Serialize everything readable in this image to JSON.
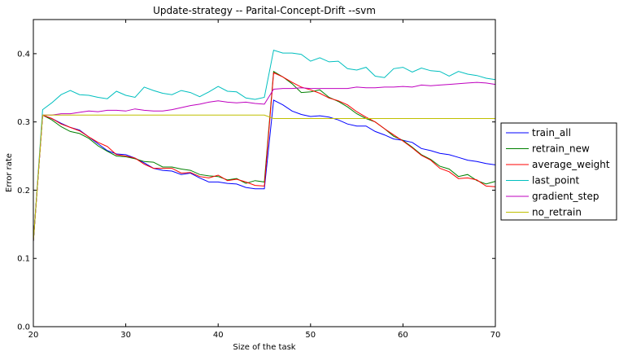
{
  "chart_data": {
    "type": "line",
    "title": "Update-strategy -- Parital-Concept-Drift --svm",
    "xlabel": "Size of the task",
    "ylabel": "Error rate",
    "xlim": [
      20,
      70
    ],
    "ylim": [
      0.0,
      0.45
    ],
    "xticks": [
      20,
      30,
      40,
      50,
      60,
      70
    ],
    "yticks": [
      0.0,
      0.1,
      0.2,
      0.3,
      0.4
    ],
    "ytick_labels": [
      "0.0",
      "0.1",
      "0.2",
      "0.3",
      "0.4"
    ],
    "grid": false,
    "legend_position": "right, outside plot",
    "x": [
      20,
      21,
      22,
      23,
      24,
      25,
      26,
      27,
      28,
      29,
      30,
      31,
      32,
      33,
      34,
      35,
      36,
      37,
      38,
      39,
      40,
      41,
      42,
      43,
      44,
      45,
      46,
      47,
      48,
      49,
      50,
      51,
      52,
      53,
      54,
      55,
      56,
      57,
      58,
      59,
      60,
      61,
      62,
      63,
      64,
      65,
      66,
      67,
      68,
      69,
      70
    ],
    "series": [
      {
        "name": "train_all",
        "color": "#0000ff",
        "values": [
          0.125,
          0.31,
          0.305,
          0.298,
          0.292,
          0.288,
          0.278,
          0.268,
          0.258,
          0.253,
          0.252,
          0.247,
          0.24,
          0.232,
          0.229,
          0.228,
          0.223,
          0.225,
          0.218,
          0.212,
          0.212,
          0.21,
          0.209,
          0.204,
          0.202,
          0.202,
          0.332,
          0.325,
          0.316,
          0.311,
          0.308,
          0.309,
          0.307,
          0.303,
          0.297,
          0.294,
          0.294,
          0.286,
          0.281,
          0.275,
          0.273,
          0.27,
          0.261,
          0.258,
          0.254,
          0.252,
          0.248,
          0.244,
          0.242,
          0.239,
          0.237
        ]
      },
      {
        "name": "retrain_new",
        "color": "#008000",
        "values": [
          0.125,
          0.31,
          0.303,
          0.293,
          0.286,
          0.283,
          0.276,
          0.265,
          0.257,
          0.25,
          0.249,
          0.246,
          0.242,
          0.241,
          0.234,
          0.234,
          0.231,
          0.229,
          0.223,
          0.221,
          0.22,
          0.215,
          0.217,
          0.21,
          0.214,
          0.212,
          0.374,
          0.366,
          0.356,
          0.343,
          0.344,
          0.347,
          0.336,
          0.33,
          0.322,
          0.312,
          0.305,
          0.3,
          0.29,
          0.279,
          0.273,
          0.263,
          0.252,
          0.245,
          0.235,
          0.231,
          0.22,
          0.223,
          0.214,
          0.209,
          0.213
        ]
      },
      {
        "name": "average_weight",
        "color": "#ff0000",
        "values": [
          0.125,
          0.31,
          0.305,
          0.297,
          0.292,
          0.287,
          0.278,
          0.27,
          0.264,
          0.252,
          0.25,
          0.247,
          0.238,
          0.232,
          0.232,
          0.232,
          0.225,
          0.226,
          0.22,
          0.218,
          0.222,
          0.214,
          0.216,
          0.212,
          0.207,
          0.206,
          0.372,
          0.366,
          0.358,
          0.351,
          0.347,
          0.342,
          0.335,
          0.331,
          0.325,
          0.315,
          0.307,
          0.3,
          0.29,
          0.281,
          0.272,
          0.262,
          0.251,
          0.244,
          0.232,
          0.227,
          0.217,
          0.218,
          0.215,
          0.206,
          0.205
        ]
      },
      {
        "name": "last_point",
        "color": "#00bfbf",
        "values": [
          0.125,
          0.318,
          0.328,
          0.34,
          0.346,
          0.34,
          0.339,
          0.336,
          0.334,
          0.345,
          0.339,
          0.336,
          0.351,
          0.346,
          0.342,
          0.34,
          0.346,
          0.343,
          0.337,
          0.344,
          0.352,
          0.345,
          0.344,
          0.335,
          0.333,
          0.336,
          0.405,
          0.401,
          0.401,
          0.399,
          0.389,
          0.394,
          0.388,
          0.389,
          0.378,
          0.376,
          0.38,
          0.367,
          0.365,
          0.378,
          0.38,
          0.373,
          0.379,
          0.375,
          0.374,
          0.367,
          0.374,
          0.37,
          0.368,
          0.364,
          0.362
        ]
      },
      {
        "name": "gradient_step",
        "color": "#bf00bf",
        "values": [
          0.125,
          0.31,
          0.31,
          0.312,
          0.312,
          0.314,
          0.316,
          0.315,
          0.317,
          0.317,
          0.316,
          0.319,
          0.317,
          0.316,
          0.316,
          0.318,
          0.321,
          0.324,
          0.326,
          0.329,
          0.331,
          0.329,
          0.328,
          0.329,
          0.327,
          0.326,
          0.348,
          0.349,
          0.349,
          0.35,
          0.349,
          0.349,
          0.349,
          0.349,
          0.349,
          0.351,
          0.35,
          0.35,
          0.351,
          0.351,
          0.352,
          0.351,
          0.354,
          0.353,
          0.354,
          0.355,
          0.356,
          0.357,
          0.358,
          0.357,
          0.355
        ]
      },
      {
        "name": "no_retrain",
        "color": "#bfbf00",
        "values": [
          0.125,
          0.31,
          0.31,
          0.31,
          0.31,
          0.31,
          0.31,
          0.31,
          0.31,
          0.31,
          0.31,
          0.31,
          0.31,
          0.31,
          0.31,
          0.31,
          0.31,
          0.31,
          0.31,
          0.31,
          0.31,
          0.31,
          0.31,
          0.31,
          0.31,
          0.31,
          0.305,
          0.305,
          0.305,
          0.305,
          0.305,
          0.305,
          0.305,
          0.305,
          0.305,
          0.305,
          0.305,
          0.305,
          0.305,
          0.305,
          0.305,
          0.305,
          0.305,
          0.305,
          0.305,
          0.305,
          0.305,
          0.305,
          0.305,
          0.305,
          0.305
        ]
      }
    ]
  }
}
